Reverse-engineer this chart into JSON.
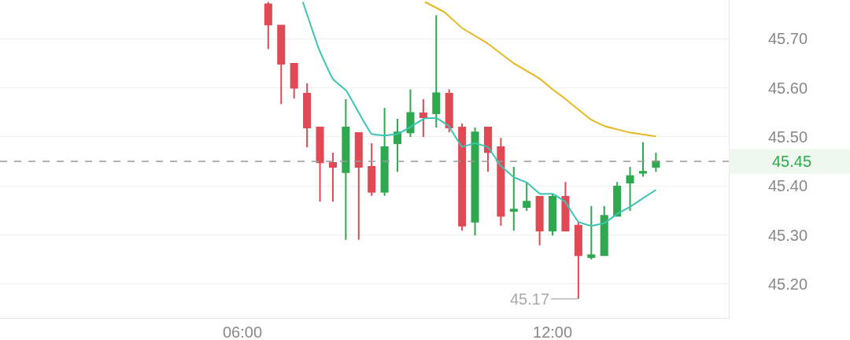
{
  "chart_data": {
    "type": "candlestick",
    "x": [
      6.5,
      6.75,
      7,
      7.25,
      7.5,
      7.75,
      8,
      8.25,
      8.5,
      8.75,
      9,
      9.25,
      9.5,
      9.75,
      10,
      10.25,
      10.5,
      10.75,
      11,
      11.25,
      11.5,
      11.75,
      12,
      12.25,
      12.5,
      12.75,
      13,
      13.25,
      13.5,
      13.75,
      14
    ],
    "ohlc": [
      [
        45.77,
        45.775,
        45.679,
        45.729
      ],
      [
        45.727,
        45.727,
        45.567,
        45.649
      ],
      [
        45.649,
        45.649,
        45.578,
        45.6
      ],
      [
        45.588,
        45.609,
        45.479,
        45.519
      ],
      [
        45.519,
        45.519,
        45.368,
        45.448
      ],
      [
        45.447,
        45.468,
        45.368,
        45.439
      ],
      [
        45.428,
        45.577,
        45.29,
        45.519
      ],
      [
        45.508,
        45.508,
        45.29,
        45.439
      ],
      [
        45.439,
        45.487,
        45.38,
        45.388
      ],
      [
        45.388,
        45.559,
        45.38,
        45.479
      ],
      [
        45.487,
        45.537,
        45.429,
        45.509
      ],
      [
        45.509,
        45.597,
        45.5,
        45.549
      ],
      [
        45.548,
        45.577,
        45.5,
        45.54
      ],
      [
        45.548,
        45.748,
        45.519,
        45.589
      ],
      [
        45.588,
        45.597,
        45.509,
        45.519
      ],
      [
        45.519,
        45.527,
        45.309,
        45.319
      ],
      [
        45.327,
        45.519,
        45.299,
        45.509
      ],
      [
        45.519,
        45.519,
        45.429,
        45.469
      ],
      [
        45.479,
        45.498,
        45.319,
        45.339
      ],
      [
        45.349,
        45.439,
        45.309,
        45.352
      ],
      [
        45.357,
        45.408,
        45.349,
        45.368
      ],
      [
        45.378,
        45.378,
        45.279,
        45.309
      ],
      [
        45.309,
        45.384,
        45.299,
        45.378
      ],
      [
        45.378,
        45.408,
        45.309,
        45.309
      ],
      [
        45.319,
        45.327,
        45.17,
        45.259
      ],
      [
        45.255,
        45.359,
        45.25,
        45.259
      ],
      [
        45.259,
        45.359,
        45.259,
        45.339
      ],
      [
        45.339,
        45.408,
        45.339,
        45.399
      ],
      [
        45.407,
        45.439,
        45.349,
        45.42
      ],
      [
        45.427,
        45.489,
        45.419,
        45.429
      ],
      [
        45.439,
        45.468,
        45.429,
        45.45
      ]
    ],
    "colors": [
      "#e04a55",
      "#e04a55",
      "#e04a55",
      "#e04a55",
      "#e04a55",
      "#e04a55",
      "#2fa84f",
      "#e04a55",
      "#e04a55",
      "#2fa84f",
      "#2fa84f",
      "#2fa84f",
      "#e04a55",
      "#2fa84f",
      "#e04a55",
      "#e04a55",
      "#2fa84f",
      "#e04a55",
      "#e04a55",
      "#2fa84f",
      "#2fa84f",
      "#e04a55",
      "#2fa84f",
      "#e04a55",
      "#e04a55",
      "#2fa84f",
      "#2fa84f",
      "#2fa84f",
      "#2fa84f",
      "#2fa84f",
      "#2fa84f"
    ],
    "series": [
      {
        "type": "line",
        "color": "#3cc4b4",
        "x": [
          7.17,
          7.48,
          7.75,
          8.01,
          8.5,
          8.77,
          9,
          9.23,
          9.53,
          9.76,
          9.99,
          10.25,
          10.49,
          10.75,
          10.99,
          11.25,
          11.5,
          11.76,
          12,
          12.24,
          12.5,
          12.75,
          13.01,
          13.25,
          13.49,
          13.75,
          14
        ],
        "values": [
          45.775,
          45.679,
          45.618,
          45.594,
          45.506,
          45.503,
          45.506,
          45.519,
          45.538,
          45.538,
          45.522,
          45.48,
          45.487,
          45.479,
          45.442,
          45.418,
          45.407,
          45.384,
          45.384,
          45.368,
          45.327,
          45.319,
          45.325,
          45.343,
          45.357,
          45.375,
          45.392
        ]
      },
      {
        "type": "line",
        "color": "#e8b820",
        "x": [
          9.53,
          9.91,
          10.25,
          10.75,
          11.25,
          11.76,
          12,
          12.24,
          12.75,
          13.01,
          13.49,
          14
        ],
        "values": [
          45.775,
          45.754,
          45.722,
          45.69,
          45.65,
          45.618,
          45.597,
          45.578,
          45.535,
          45.522,
          45.509,
          45.501
        ]
      }
    ],
    "xlim": [
      1.31,
      15.41
    ],
    "xticks": [
      {
        "value": 6,
        "label": "06:00"
      },
      {
        "value": 12,
        "label": "12:00"
      }
    ],
    "ylim": [
      45.131,
      45.779
    ],
    "yticks": [
      {
        "value": 45.2,
        "label": "45.20"
      },
      {
        "value": 45.3,
        "label": "45.30"
      },
      {
        "value": 45.4,
        "label": "45.40"
      },
      {
        "value": 45.5,
        "label": "45.50"
      },
      {
        "value": 45.6,
        "label": "45.60"
      },
      {
        "value": 45.7,
        "label": "45.70"
      }
    ],
    "ref_lines": [
      {
        "axis": "y",
        "value": 45.45,
        "label": "45.45",
        "color": "#9a9a9a",
        "line_style": "dashed"
      }
    ],
    "annotations": [
      {
        "text": "45.17",
        "x": 12.5,
        "y": 45.17
      }
    ],
    "grid": "y"
  }
}
